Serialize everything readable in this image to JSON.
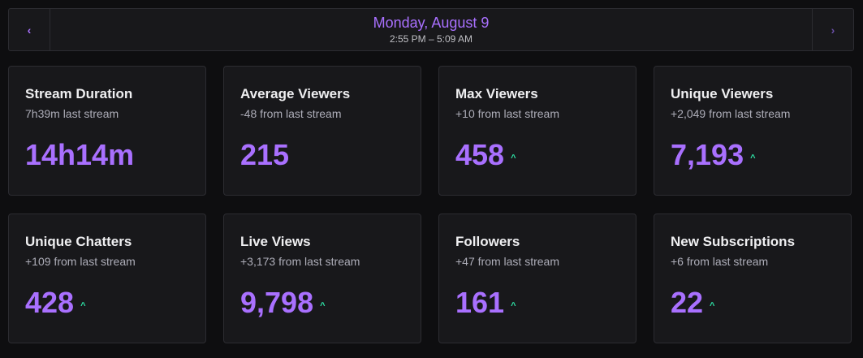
{
  "header": {
    "prev_icon": "‹",
    "next_icon": "›",
    "date": "Monday, August 9",
    "time_range": "2:55 PM – 5:09 AM"
  },
  "cards": [
    {
      "title": "Stream Duration",
      "sub": "7h39m last stream",
      "value": "14h14m",
      "trend": ""
    },
    {
      "title": "Average Viewers",
      "sub": "-48 from last stream",
      "value": "215",
      "trend": ""
    },
    {
      "title": "Max Viewers",
      "sub": "+10 from last stream",
      "value": "458",
      "trend": "^"
    },
    {
      "title": "Unique Viewers",
      "sub": "+2,049 from last stream",
      "value": "7,193",
      "trend": "^"
    },
    {
      "title": "Unique Chatters",
      "sub": "+109 from last stream",
      "value": "428",
      "trend": "^"
    },
    {
      "title": "Live Views",
      "sub": "+3,173 from last stream",
      "value": "9,798",
      "trend": "^"
    },
    {
      "title": "Followers",
      "sub": "+47 from last stream",
      "value": "161",
      "trend": "^"
    },
    {
      "title": "New Subscriptions",
      "sub": "+6 from last stream",
      "value": "22",
      "trend": "^"
    }
  ],
  "colors": {
    "accent": "#a970ff",
    "trend_up": "#2ee6a8",
    "card_bg": "#18181b",
    "page_bg": "#0e0e10"
  }
}
